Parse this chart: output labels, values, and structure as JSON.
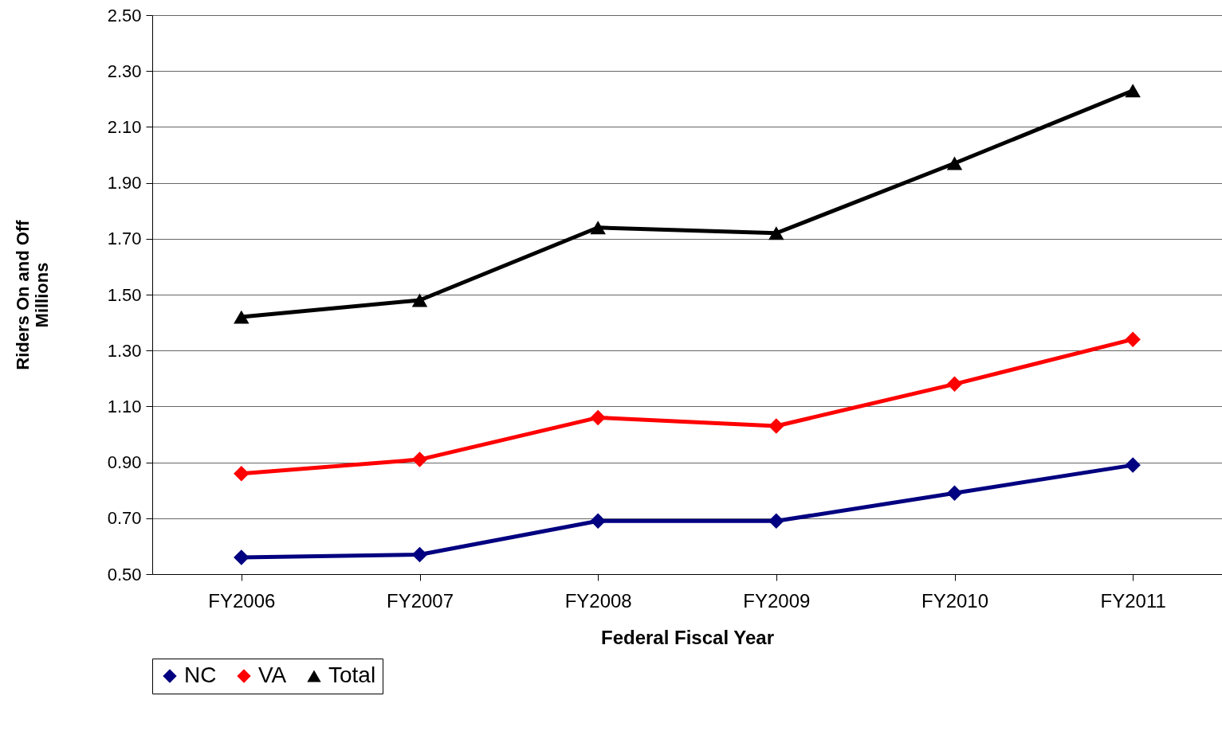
{
  "chart_data": {
    "type": "line",
    "xlabel": "Federal Fiscal Year",
    "ylabel": "Riders On and Off\nMillions",
    "categories": [
      "FY2006",
      "FY2007",
      "FY2008",
      "FY2009",
      "FY2010",
      "FY2011"
    ],
    "series": [
      {
        "name": "NC",
        "color": "#000080",
        "marker": "diamond",
        "values": [
          0.56,
          0.57,
          0.69,
          0.69,
          0.79,
          0.89
        ]
      },
      {
        "name": "VA",
        "color": "#ff0000",
        "marker": "diamond",
        "values": [
          0.86,
          0.91,
          1.06,
          1.03,
          1.18,
          1.34
        ]
      },
      {
        "name": "Total",
        "color": "#000000",
        "marker": "triangle",
        "values": [
          1.42,
          1.48,
          1.74,
          1.72,
          1.97,
          2.23
        ]
      }
    ],
    "ylim": [
      0.5,
      2.5
    ],
    "yticks": [
      {
        "value": 0.5,
        "label": "0.50"
      },
      {
        "value": 0.7,
        "label": "0.70"
      },
      {
        "value": 0.9,
        "label": "0.90"
      },
      {
        "value": 1.1,
        "label": "1.10"
      },
      {
        "value": 1.3,
        "label": "1.30"
      },
      {
        "value": 1.5,
        "label": "1.50"
      },
      {
        "value": 1.7,
        "label": "1.70"
      },
      {
        "value": 1.9,
        "label": "1.90"
      },
      {
        "value": 2.1,
        "label": "2.10"
      },
      {
        "value": 2.3,
        "label": "2.30"
      },
      {
        "value": 2.5,
        "label": "2.50"
      }
    ],
    "grid": "y",
    "legend": "bottom",
    "line_style": "solid"
  }
}
